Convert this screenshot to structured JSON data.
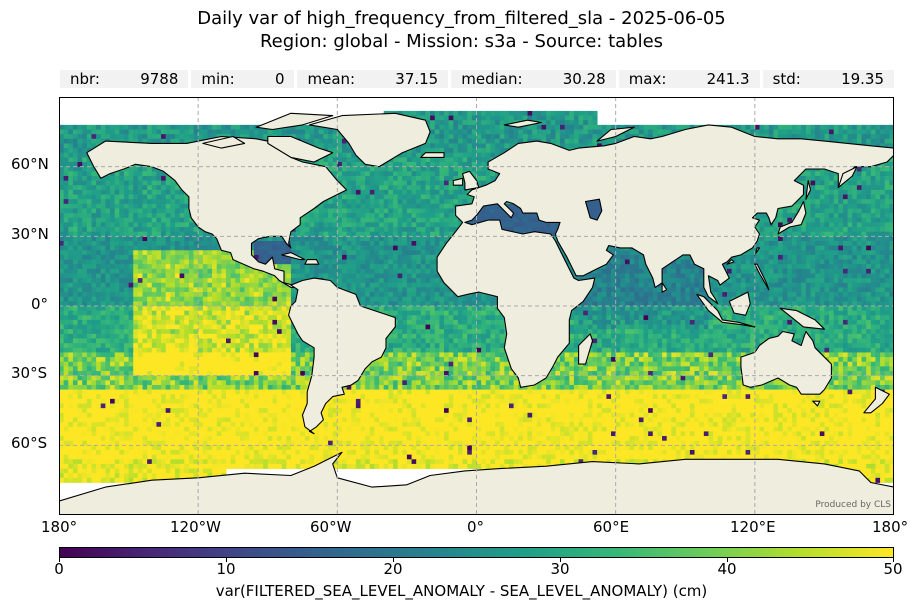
{
  "header": {
    "title_line1": "Daily var of high_frequency_from_filtered_sla - 2025-06-05",
    "title_line2": "Region: global - Mission: s3a - Source: tables"
  },
  "stats": [
    {
      "key": "nbr:",
      "value": "9788"
    },
    {
      "key": "min:",
      "value": "0"
    },
    {
      "key": "mean:",
      "value": "37.15"
    },
    {
      "key": "median:",
      "value": "30.28"
    },
    {
      "key": "max:",
      "value": "241.3"
    },
    {
      "key": "std:",
      "value": "19.35"
    }
  ],
  "map": {
    "lat_ticks": [
      "60°N",
      "30°N",
      "0°",
      "30°S",
      "60°S"
    ],
    "lon_ticks": [
      "180°",
      "120°W",
      "60°W",
      "0°",
      "60°E",
      "120°E",
      "180°"
    ],
    "credit": "Produced by CLS",
    "colors": {
      "land": "#efedde",
      "coastline": "#000000",
      "gridline": "#aaaaaa",
      "missing": "#ffffff"
    },
    "grid": "dashed"
  },
  "colorbar": {
    "colormap": "viridis",
    "vmin": 0,
    "vmax": 50,
    "ticks": [
      "0",
      "10",
      "20",
      "30",
      "40",
      "50"
    ],
    "label": "var(FILTERED_SEA_LEVEL_ANOMALY - SEA_LEVEL_ANOMALY) (cm)"
  },
  "chart_data": {
    "type": "heatmap",
    "projection": "plate-carree",
    "title": "Daily var of high_frequency_from_filtered_sla - 2025-06-05",
    "subtitle": "Region: global - Mission: s3a - Source: tables",
    "xlim": [
      -180,
      180
    ],
    "ylim": [
      -90,
      90
    ],
    "grid_on": true,
    "value_range": [
      0,
      50
    ],
    "regions_approx_cm": [
      {
        "region": "Southern Ocean 35S-65S",
        "value": 50
      },
      {
        "region": "Tropical East Pacific",
        "value": 45
      },
      {
        "region": "North Atlantic",
        "value": 28
      },
      {
        "region": "North Pacific",
        "value": 25
      },
      {
        "region": "Indian Ocean",
        "value": 22
      },
      {
        "region": "Mediterranean / Gulf of Mexico",
        "value": 15
      },
      {
        "region": "Arctic",
        "value": 22
      }
    ]
  }
}
